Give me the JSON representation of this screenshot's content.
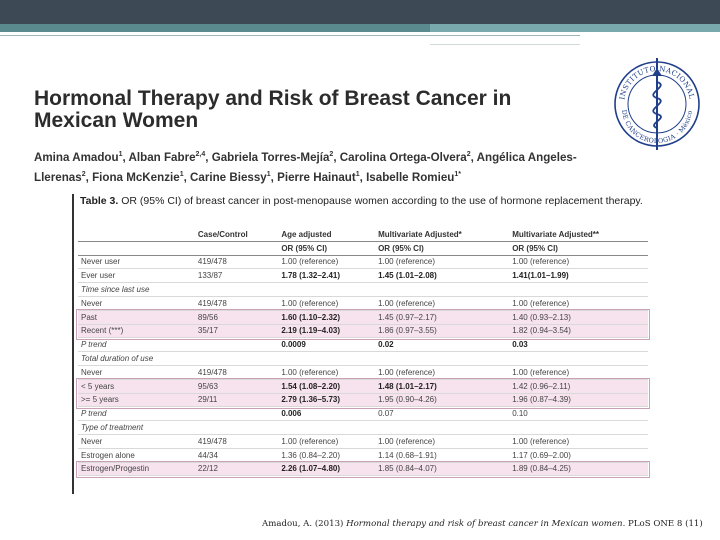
{
  "title": "Hormonal Therapy and Risk of Breast Cancer in Mexican Women",
  "authors": {
    "line1": [
      {
        "name": "Amina Amadou",
        "sup": "1"
      },
      {
        "name": "Alban Fabre",
        "sup": "2,4"
      },
      {
        "name": "Gabriela Torres-Mejía",
        "sup": "2"
      },
      {
        "name": "Carolina Ortega-Olvera",
        "sup": "2"
      },
      {
        "name": "Angélica Angeles-",
        "sup": ""
      }
    ],
    "line2": [
      {
        "name": "Llerenas",
        "sup": "2"
      },
      {
        "name": "Fiona McKenzie",
        "sup": "1"
      },
      {
        "name": "Carine Biessy",
        "sup": "1"
      },
      {
        "name": "Pierre Hainaut",
        "sup": "1"
      },
      {
        "name": "Isabelle Romieu",
        "sup": "1*"
      }
    ]
  },
  "seal": {
    "text_top": "INSTITUTO NACIONAL",
    "text_bottom": "DE CANCEROLOGIA · México"
  },
  "table": {
    "caption_label": "Table 3.",
    "caption_text": "OR (95% CI) of breast cancer in post-menopause women according to the use of hormone replacement therapy.",
    "header1": [
      "",
      "Case/Control",
      "Age adjusted",
      "Multivariate Adjusted*",
      "Multivariate Adjusted**"
    ],
    "header2": [
      "",
      "",
      "OR (95% CI)",
      "OR (95% CI)",
      "OR (95% CI)"
    ],
    "rows": [
      {
        "cells": [
          "Never user",
          "419/478",
          "1.00 (reference)",
          "1.00 (reference)",
          "1.00 (reference)"
        ],
        "bold": [],
        "italic": false,
        "hl": false
      },
      {
        "cells": [
          "Ever user",
          "133/87",
          "1.78 (1.32–2.41)",
          "1.45 (1.01–2.08)",
          "1.41(1.01–1.99)"
        ],
        "bold": [
          2,
          3,
          4
        ],
        "italic": false,
        "hl": false
      },
      {
        "cells": [
          "Time since last use",
          "",
          "",
          "",
          ""
        ],
        "bold": [],
        "italic": true,
        "hl": false
      },
      {
        "cells": [
          "Never",
          "419/478",
          "1.00 (reference)",
          "1.00 (reference)",
          "1.00 (reference)"
        ],
        "bold": [],
        "italic": false,
        "hl": false
      },
      {
        "cells": [
          "Past",
          "89/56",
          "1.60 (1.10–2.32)",
          "1.45 (0.97–2.17)",
          "1.40 (0.93–2.13)"
        ],
        "bold": [
          2
        ],
        "italic": false,
        "hl": true
      },
      {
        "cells": [
          "Recent (***)",
          "35/17",
          "2.19 (1.19–4.03)",
          "1.86 (0.97–3.55)",
          "1.82 (0.94–3.54)"
        ],
        "bold": [
          2
        ],
        "italic": false,
        "hl": true
      },
      {
        "cells": [
          "P trend",
          "",
          "0.0009",
          "0.02",
          "0.03"
        ],
        "bold": [
          2,
          3,
          4
        ],
        "italic": false,
        "hl": false,
        "italic_first": true
      },
      {
        "cells": [
          "Total duration of use",
          "",
          "",
          "",
          ""
        ],
        "bold": [],
        "italic": true,
        "hl": false
      },
      {
        "cells": [
          "Never",
          "419/478",
          "1.00 (reference)",
          "1.00 (reference)",
          "1.00 (reference)"
        ],
        "bold": [],
        "italic": false,
        "hl": false
      },
      {
        "cells": [
          "< 5 years",
          "95/63",
          "1.54 (1.08–2.20)",
          "1.48 (1.01–2.17)",
          "1.42 (0.96–2.11)"
        ],
        "bold": [
          2,
          3
        ],
        "italic": false,
        "hl": true
      },
      {
        "cells": [
          ">= 5 years",
          "29/11",
          "2.79 (1.36–5.73)",
          "1.95 (0.90–4.26)",
          "1.96 (0.87–4.39)"
        ],
        "bold": [
          2
        ],
        "italic": false,
        "hl": true
      },
      {
        "cells": [
          "P trend",
          "",
          "0.006",
          "0.07",
          "0.10"
        ],
        "bold": [
          2
        ],
        "italic": false,
        "hl": false,
        "italic_first": true
      },
      {
        "cells": [
          "Type of treatment",
          "",
          "",
          "",
          ""
        ],
        "bold": [],
        "italic": true,
        "hl": false
      },
      {
        "cells": [
          "Never",
          "419/478",
          "1.00 (reference)",
          "1.00 (reference)",
          "1.00 (reference)"
        ],
        "bold": [],
        "italic": false,
        "hl": false
      },
      {
        "cells": [
          "Estrogen alone",
          "44/34",
          "1.36 (0.84–2.20)",
          "1.14 (0.68–1.91)",
          "1.17 (0.69–2.00)"
        ],
        "bold": [],
        "italic": false,
        "hl": false
      },
      {
        "cells": [
          "Estrogen/Progestin",
          "22/12",
          "2.26 (1.07–4.80)",
          "1.85 (0.84–4.07)",
          "1.89 (0.84–4.25)"
        ],
        "bold": [
          2
        ],
        "italic": false,
        "hl": true
      }
    ]
  },
  "citation": {
    "prefix": "Amadou, A. (2013) ",
    "title": "Hormonal therapy and risk of breast cancer in Mexican women",
    "suffix": ". PLoS ONE 8 (11)"
  },
  "colors": {
    "topbar": "#3d4a56",
    "accent": "#5a8a8e",
    "highlight": "#f7e3ee",
    "seal": "#1f3f8a"
  }
}
